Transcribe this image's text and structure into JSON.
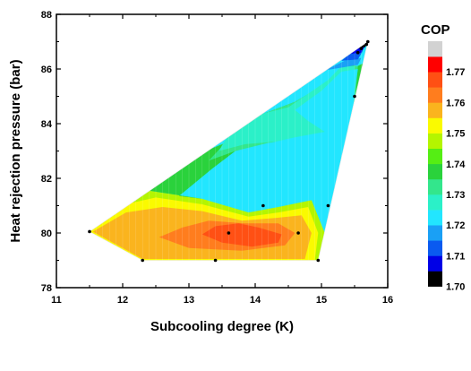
{
  "chart_data": {
    "type": "contour",
    "title": "",
    "xlabel": "Subcooling degree (K)",
    "ylabel": "Heat rejection pressure (bar)",
    "xlim": [
      11,
      16
    ],
    "ylim": [
      78,
      88
    ],
    "xticks": [
      "11",
      "12",
      "13",
      "14",
      "15",
      "16"
    ],
    "yticks": [
      "78",
      "80",
      "82",
      "84",
      "86",
      "88"
    ],
    "grid": false,
    "colorbar": {
      "title": "COP",
      "labels": [
        "1.77",
        "1.76",
        "1.75",
        "1.74",
        "1.73",
        "1.72",
        "1.71",
        "1.70"
      ],
      "colors": [
        "#000000",
        "#0000e6",
        "#0a5af0",
        "#1aa0f5",
        "#22e6ff",
        "#2bf0c8",
        "#33e68c",
        "#2ad23c",
        "#55ee14",
        "#b4f500",
        "#fafa00",
        "#fab41e",
        "#ff7d1e",
        "#ff5014",
        "#ff0000",
        "#d2d2d2"
      ]
    },
    "domain_polygon": [
      [
        11.5,
        80.05
      ],
      [
        12.3,
        79.0
      ],
      [
        14.95,
        79.0
      ],
      [
        15.7,
        87.0
      ]
    ],
    "contour_regions": [
      {
        "color": "#b4f500",
        "polygon": [
          [
            11.5,
            80.05
          ],
          [
            11.95,
            81.25
          ],
          [
            12.4,
            81.55
          ],
          [
            13.2,
            81.25
          ],
          [
            13.9,
            80.75
          ],
          [
            14.35,
            80.95
          ],
          [
            14.85,
            81.2
          ],
          [
            15.05,
            80.0
          ],
          [
            14.95,
            79.0
          ],
          [
            12.3,
            79.0
          ]
        ]
      },
      {
        "color": "#fafa00",
        "polygon": [
          [
            11.5,
            80.05
          ],
          [
            11.95,
            81.0
          ],
          [
            12.5,
            81.3
          ],
          [
            13.2,
            81.05
          ],
          [
            13.9,
            80.6
          ],
          [
            14.35,
            80.75
          ],
          [
            14.8,
            80.95
          ],
          [
            14.95,
            80.0
          ],
          [
            14.9,
            79.0
          ],
          [
            12.3,
            79.0
          ]
        ]
      },
      {
        "color": "#fab41e",
        "polygon": [
          [
            11.55,
            80.05
          ],
          [
            12.05,
            80.75
          ],
          [
            12.6,
            80.95
          ],
          [
            13.2,
            80.8
          ],
          [
            13.8,
            80.45
          ],
          [
            14.3,
            80.55
          ],
          [
            14.7,
            80.65
          ],
          [
            14.85,
            80.0
          ],
          [
            14.75,
            79.05
          ],
          [
            12.3,
            79.05
          ]
        ]
      },
      {
        "color": "#ff7d1e",
        "polygon": [
          [
            12.55,
            79.85
          ],
          [
            12.9,
            80.2
          ],
          [
            13.3,
            80.45
          ],
          [
            13.85,
            80.35
          ],
          [
            14.35,
            80.35
          ],
          [
            14.6,
            80.0
          ],
          [
            14.45,
            79.55
          ],
          [
            13.8,
            79.35
          ],
          [
            13.0,
            79.45
          ]
        ]
      },
      {
        "color": "#ff5014",
        "polygon": [
          [
            13.2,
            79.95
          ],
          [
            13.4,
            80.25
          ],
          [
            13.75,
            80.35
          ],
          [
            14.05,
            80.2
          ],
          [
            14.4,
            79.95
          ],
          [
            14.35,
            79.65
          ],
          [
            13.95,
            79.5
          ],
          [
            13.5,
            79.65
          ]
        ]
      },
      {
        "color": "#2ad23c",
        "polygon": [
          [
            12.85,
            81.35
          ],
          [
            13.35,
            82.35
          ],
          [
            13.7,
            83.0
          ],
          [
            14.2,
            83.4
          ],
          [
            15.05,
            83.6
          ],
          [
            15.45,
            84.1
          ],
          [
            15.55,
            84.8
          ],
          [
            15.62,
            86.2
          ],
          [
            15.3,
            85.8
          ],
          [
            14.6,
            84.8
          ],
          [
            14.05,
            84.3
          ],
          [
            13.55,
            83.3
          ],
          [
            13.35,
            83.1
          ],
          [
            12.95,
            82.7
          ],
          [
            12.4,
            82.3
          ],
          [
            12.0,
            81.85
          ],
          [
            11.75,
            81.2
          ],
          [
            12.4,
            81.55
          ],
          [
            13.2,
            81.25
          ]
        ]
      },
      {
        "color": "#33e68c",
        "polygon": [
          [
            13.3,
            82.65
          ],
          [
            13.7,
            83.0
          ],
          [
            14.2,
            83.3
          ],
          [
            15.05,
            83.5
          ],
          [
            15.4,
            84.0
          ],
          [
            15.5,
            84.6
          ],
          [
            15.55,
            86.1
          ],
          [
            15.45,
            86.15
          ],
          [
            15.3,
            85.8
          ],
          [
            14.6,
            84.8
          ],
          [
            14.05,
            84.3
          ],
          [
            13.55,
            83.3
          ]
        ]
      },
      {
        "color": "#2bf0c8",
        "polygon": [
          [
            13.45,
            83.0
          ],
          [
            13.85,
            83.25
          ],
          [
            14.35,
            83.35
          ],
          [
            15.05,
            83.3
          ],
          [
            15.35,
            83.8
          ],
          [
            15.45,
            84.5
          ],
          [
            15.5,
            86.1
          ],
          [
            15.3,
            86.1
          ],
          [
            15.1,
            85.6
          ],
          [
            14.5,
            84.6
          ],
          [
            14.0,
            84.3
          ],
          [
            13.6,
            83.6
          ]
        ]
      },
      {
        "color": "#22e6ff",
        "polygon": [
          [
            13.65,
            82.2
          ],
          [
            14.05,
            82.1
          ],
          [
            14.5,
            81.6
          ],
          [
            14.9,
            81.5
          ],
          [
            15.05,
            81.3
          ],
          [
            15.1,
            80.4
          ],
          [
            15.3,
            81.9
          ],
          [
            15.45,
            83.6
          ],
          [
            15.5,
            85.2
          ],
          [
            15.55,
            86.0
          ],
          [
            15.3,
            85.9
          ],
          [
            15.0,
            85.2
          ],
          [
            14.6,
            84.5
          ],
          [
            14.8,
            84.1
          ],
          [
            15.05,
            83.7
          ],
          [
            14.6,
            83.5
          ],
          [
            14.05,
            83.2
          ],
          [
            13.85,
            82.8
          ],
          [
            13.7,
            82.5
          ]
        ]
      },
      {
        "color": "#1aa0f5",
        "polygon": [
          [
            15.05,
            85.95
          ],
          [
            15.3,
            86.05
          ],
          [
            15.55,
            86.15
          ],
          [
            15.6,
            86.4
          ],
          [
            15.35,
            86.3
          ]
        ]
      },
      {
        "color": "#0a5af0",
        "polygon": [
          [
            15.3,
            86.3
          ],
          [
            15.55,
            86.35
          ],
          [
            15.62,
            86.65
          ],
          [
            15.45,
            86.6
          ]
        ]
      },
      {
        "color": "#0000e6",
        "polygon": [
          [
            15.4,
            86.55
          ],
          [
            15.6,
            86.6
          ],
          [
            15.66,
            86.85
          ],
          [
            15.5,
            86.8
          ]
        ]
      },
      {
        "color": "#000000",
        "polygon": [
          [
            15.5,
            86.75
          ],
          [
            15.66,
            86.8
          ],
          [
            15.7,
            87.0
          ],
          [
            15.58,
            86.95
          ]
        ]
      }
    ],
    "data_points": [
      {
        "x": 11.5,
        "y": 80.05
      },
      {
        "x": 12.3,
        "y": 79.0
      },
      {
        "x": 13.4,
        "y": 79.0
      },
      {
        "x": 14.95,
        "y": 79.0
      },
      {
        "x": 13.6,
        "y": 80.0
      },
      {
        "x": 14.65,
        "y": 80.0
      },
      {
        "x": 14.12,
        "y": 81.0
      },
      {
        "x": 15.1,
        "y": 81.0
      },
      {
        "x": 15.5,
        "y": 85.0
      },
      {
        "x": 15.55,
        "y": 86.6
      },
      {
        "x": 15.6,
        "y": 86.75
      },
      {
        "x": 15.68,
        "y": 86.9
      },
      {
        "x": 15.7,
        "y": 87.0
      }
    ]
  }
}
